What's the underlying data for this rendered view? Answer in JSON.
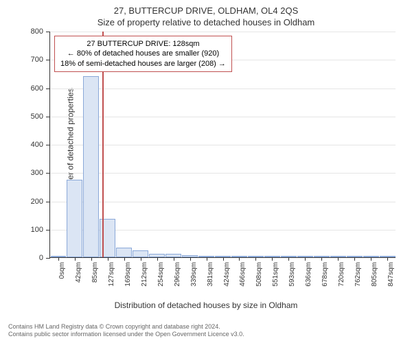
{
  "header": {
    "title": "27, BUTTERCUP DRIVE, OLDHAM, OL4 2QS",
    "subtitle": "Size of property relative to detached houses in Oldham"
  },
  "chart": {
    "type": "histogram",
    "ylabel": "Number of detached properties",
    "xlabel": "Distribution of detached houses by size in Oldham",
    "ylim": [
      0,
      800
    ],
    "ytick_step": 100,
    "yticks": [
      0,
      100,
      200,
      300,
      400,
      500,
      600,
      700,
      800
    ],
    "xtick_labels": [
      "0sqm",
      "42sqm",
      "85sqm",
      "127sqm",
      "169sqm",
      "212sqm",
      "254sqm",
      "296sqm",
      "339sqm",
      "381sqm",
      "424sqm",
      "466sqm",
      "508sqm",
      "551sqm",
      "593sqm",
      "636sqm",
      "678sqm",
      "720sqm",
      "762sqm",
      "805sqm",
      "847sqm"
    ],
    "values": [
      6,
      273,
      640,
      137,
      35,
      24,
      13,
      12,
      7,
      6,
      5,
      2,
      1,
      1,
      1,
      1,
      1,
      1,
      0,
      0,
      0
    ],
    "bar_fill": "#dbe5f4",
    "bar_border": "#8aa8d8",
    "grid_color": "#e5e5e5",
    "background_color": "#ffffff",
    "axis_color": "#333333",
    "label_fontsize": 12,
    "tick_fontsize": 11
  },
  "marker": {
    "value_sqm": 128,
    "fraction": 0.151,
    "line_color": "#c05050",
    "box_border": "#c05050",
    "lines": {
      "l1": "27 BUTTERCUP DRIVE: 128sqm",
      "l2": "← 80% of detached houses are smaller (920)",
      "l3": "18% of semi-detached houses are larger (208) →"
    }
  },
  "footer": {
    "line1": "Contains HM Land Registry data © Crown copyright and database right 2024.",
    "line2": "Contains public sector information licensed under the Open Government Licence v3.0."
  }
}
